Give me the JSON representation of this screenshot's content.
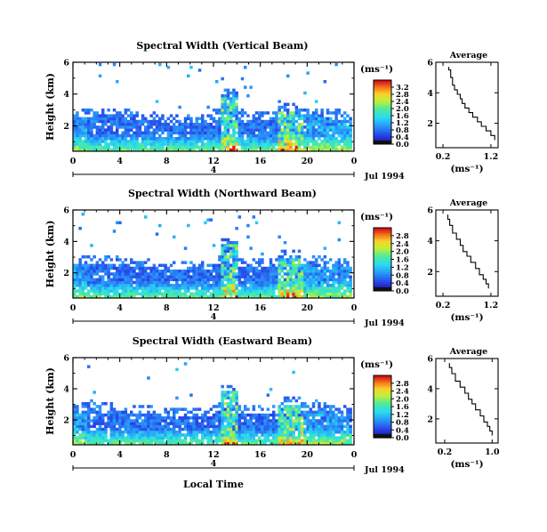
{
  "xaxis_label": "Local Time",
  "chart_data": [
    {
      "type": "heatmap",
      "title": "Spectral Width (Vertical Beam)",
      "ylabel": "Height (km)",
      "xticks": [
        "0",
        "4",
        "8",
        "12",
        "16",
        "20",
        "0"
      ],
      "yticks": [
        "2",
        "4",
        "6"
      ],
      "xlim": [
        0,
        24
      ],
      "ylim": [
        0.4,
        6
      ],
      "date_label": "Jul 1994",
      "date_marker": "4",
      "colorbar": {
        "unit": "(ms⁻¹)",
        "ticks": [
          "0.0",
          "0.4",
          "0.8",
          "1.2",
          "1.6",
          "2.0",
          "2.4",
          "2.8",
          "3.2"
        ],
        "range": [
          0,
          3.6
        ]
      },
      "profile": {
        "title": "Average",
        "xlabel": "(ms⁻¹)",
        "xticks": [
          "0.2",
          "1.2"
        ],
        "xtick_values": [
          0.2,
          1.2
        ],
        "xlim": [
          0.05,
          1.35
        ],
        "yticks": [
          "2",
          "4",
          "6"
        ],
        "ylim": [
          0.4,
          6
        ],
        "x": [
          0.32,
          0.36,
          0.4,
          0.44,
          0.5,
          0.56,
          0.6,
          0.66,
          0.74,
          0.82,
          0.92,
          1.0,
          1.1,
          1.2,
          1.28
        ],
        "y": [
          5.5,
          5.0,
          4.5,
          4.2,
          3.9,
          3.6,
          3.3,
          3.0,
          2.7,
          2.4,
          2.1,
          1.8,
          1.5,
          1.2,
          0.9
        ]
      }
    },
    {
      "type": "heatmap",
      "title": "Spectral Width (Northward Beam)",
      "ylabel": "Height (km)",
      "xticks": [
        "0",
        "4",
        "8",
        "12",
        "16",
        "20",
        "0"
      ],
      "yticks": [
        "2",
        "4",
        "6"
      ],
      "xlim": [
        0,
        24
      ],
      "ylim": [
        0.4,
        6
      ],
      "date_label": "Jul 1994",
      "date_marker": "4",
      "colorbar": {
        "unit": "(ms⁻¹)",
        "ticks": [
          "0.0",
          "0.4",
          "0.8",
          "1.2",
          "1.6",
          "2.0",
          "2.4",
          "2.8"
        ],
        "range": [
          0,
          3.2
        ]
      },
      "profile": {
        "title": "Average",
        "xlabel": "(ms⁻¹)",
        "xticks": [
          "0.2",
          "1.2"
        ],
        "xtick_values": [
          0.2,
          1.2
        ],
        "xlim": [
          0.05,
          1.35
        ],
        "yticks": [
          "2",
          "4",
          "6"
        ],
        "ylim": [
          0.4,
          6
        ],
        "x": [
          0.3,
          0.34,
          0.4,
          0.48,
          0.56,
          0.62,
          0.7,
          0.78,
          0.88,
          0.96,
          1.04,
          1.1,
          1.15
        ],
        "y": [
          5.4,
          5.0,
          4.5,
          4.1,
          3.7,
          3.3,
          3.0,
          2.6,
          2.2,
          1.8,
          1.5,
          1.2,
          0.9
        ]
      }
    },
    {
      "type": "heatmap",
      "title": "Spectral Width (Eastward Beam)",
      "ylabel": "Height (km)",
      "xticks": [
        "0",
        "4",
        "8",
        "12",
        "16",
        "20",
        "0"
      ],
      "yticks": [
        "2",
        "4",
        "6"
      ],
      "xlim": [
        0,
        24
      ],
      "ylim": [
        0.4,
        6
      ],
      "date_label": "Jul 1994",
      "date_marker": "4",
      "colorbar": {
        "unit": "(ms⁻¹)",
        "ticks": [
          "0.0",
          "0.4",
          "0.8",
          "1.2",
          "1.6",
          "2.0",
          "2.4",
          "2.8"
        ],
        "range": [
          0,
          3.2
        ]
      },
      "profile": {
        "title": "Average",
        "xlabel": "(ms⁻¹)",
        "xticks": [
          "0.2",
          "1.0"
        ],
        "xtick_values": [
          0.2,
          1.0
        ],
        "xlim": [
          0.05,
          1.1
        ],
        "yticks": [
          "2",
          "4",
          "6"
        ],
        "ylim": [
          0.4,
          6
        ],
        "x": [
          0.28,
          0.32,
          0.38,
          0.46,
          0.54,
          0.6,
          0.66,
          0.72,
          0.8,
          0.86,
          0.92,
          0.96,
          1.0
        ],
        "y": [
          5.4,
          5.0,
          4.5,
          4.1,
          3.7,
          3.3,
          3.0,
          2.6,
          2.2,
          1.8,
          1.5,
          1.2,
          0.9
        ]
      }
    }
  ]
}
